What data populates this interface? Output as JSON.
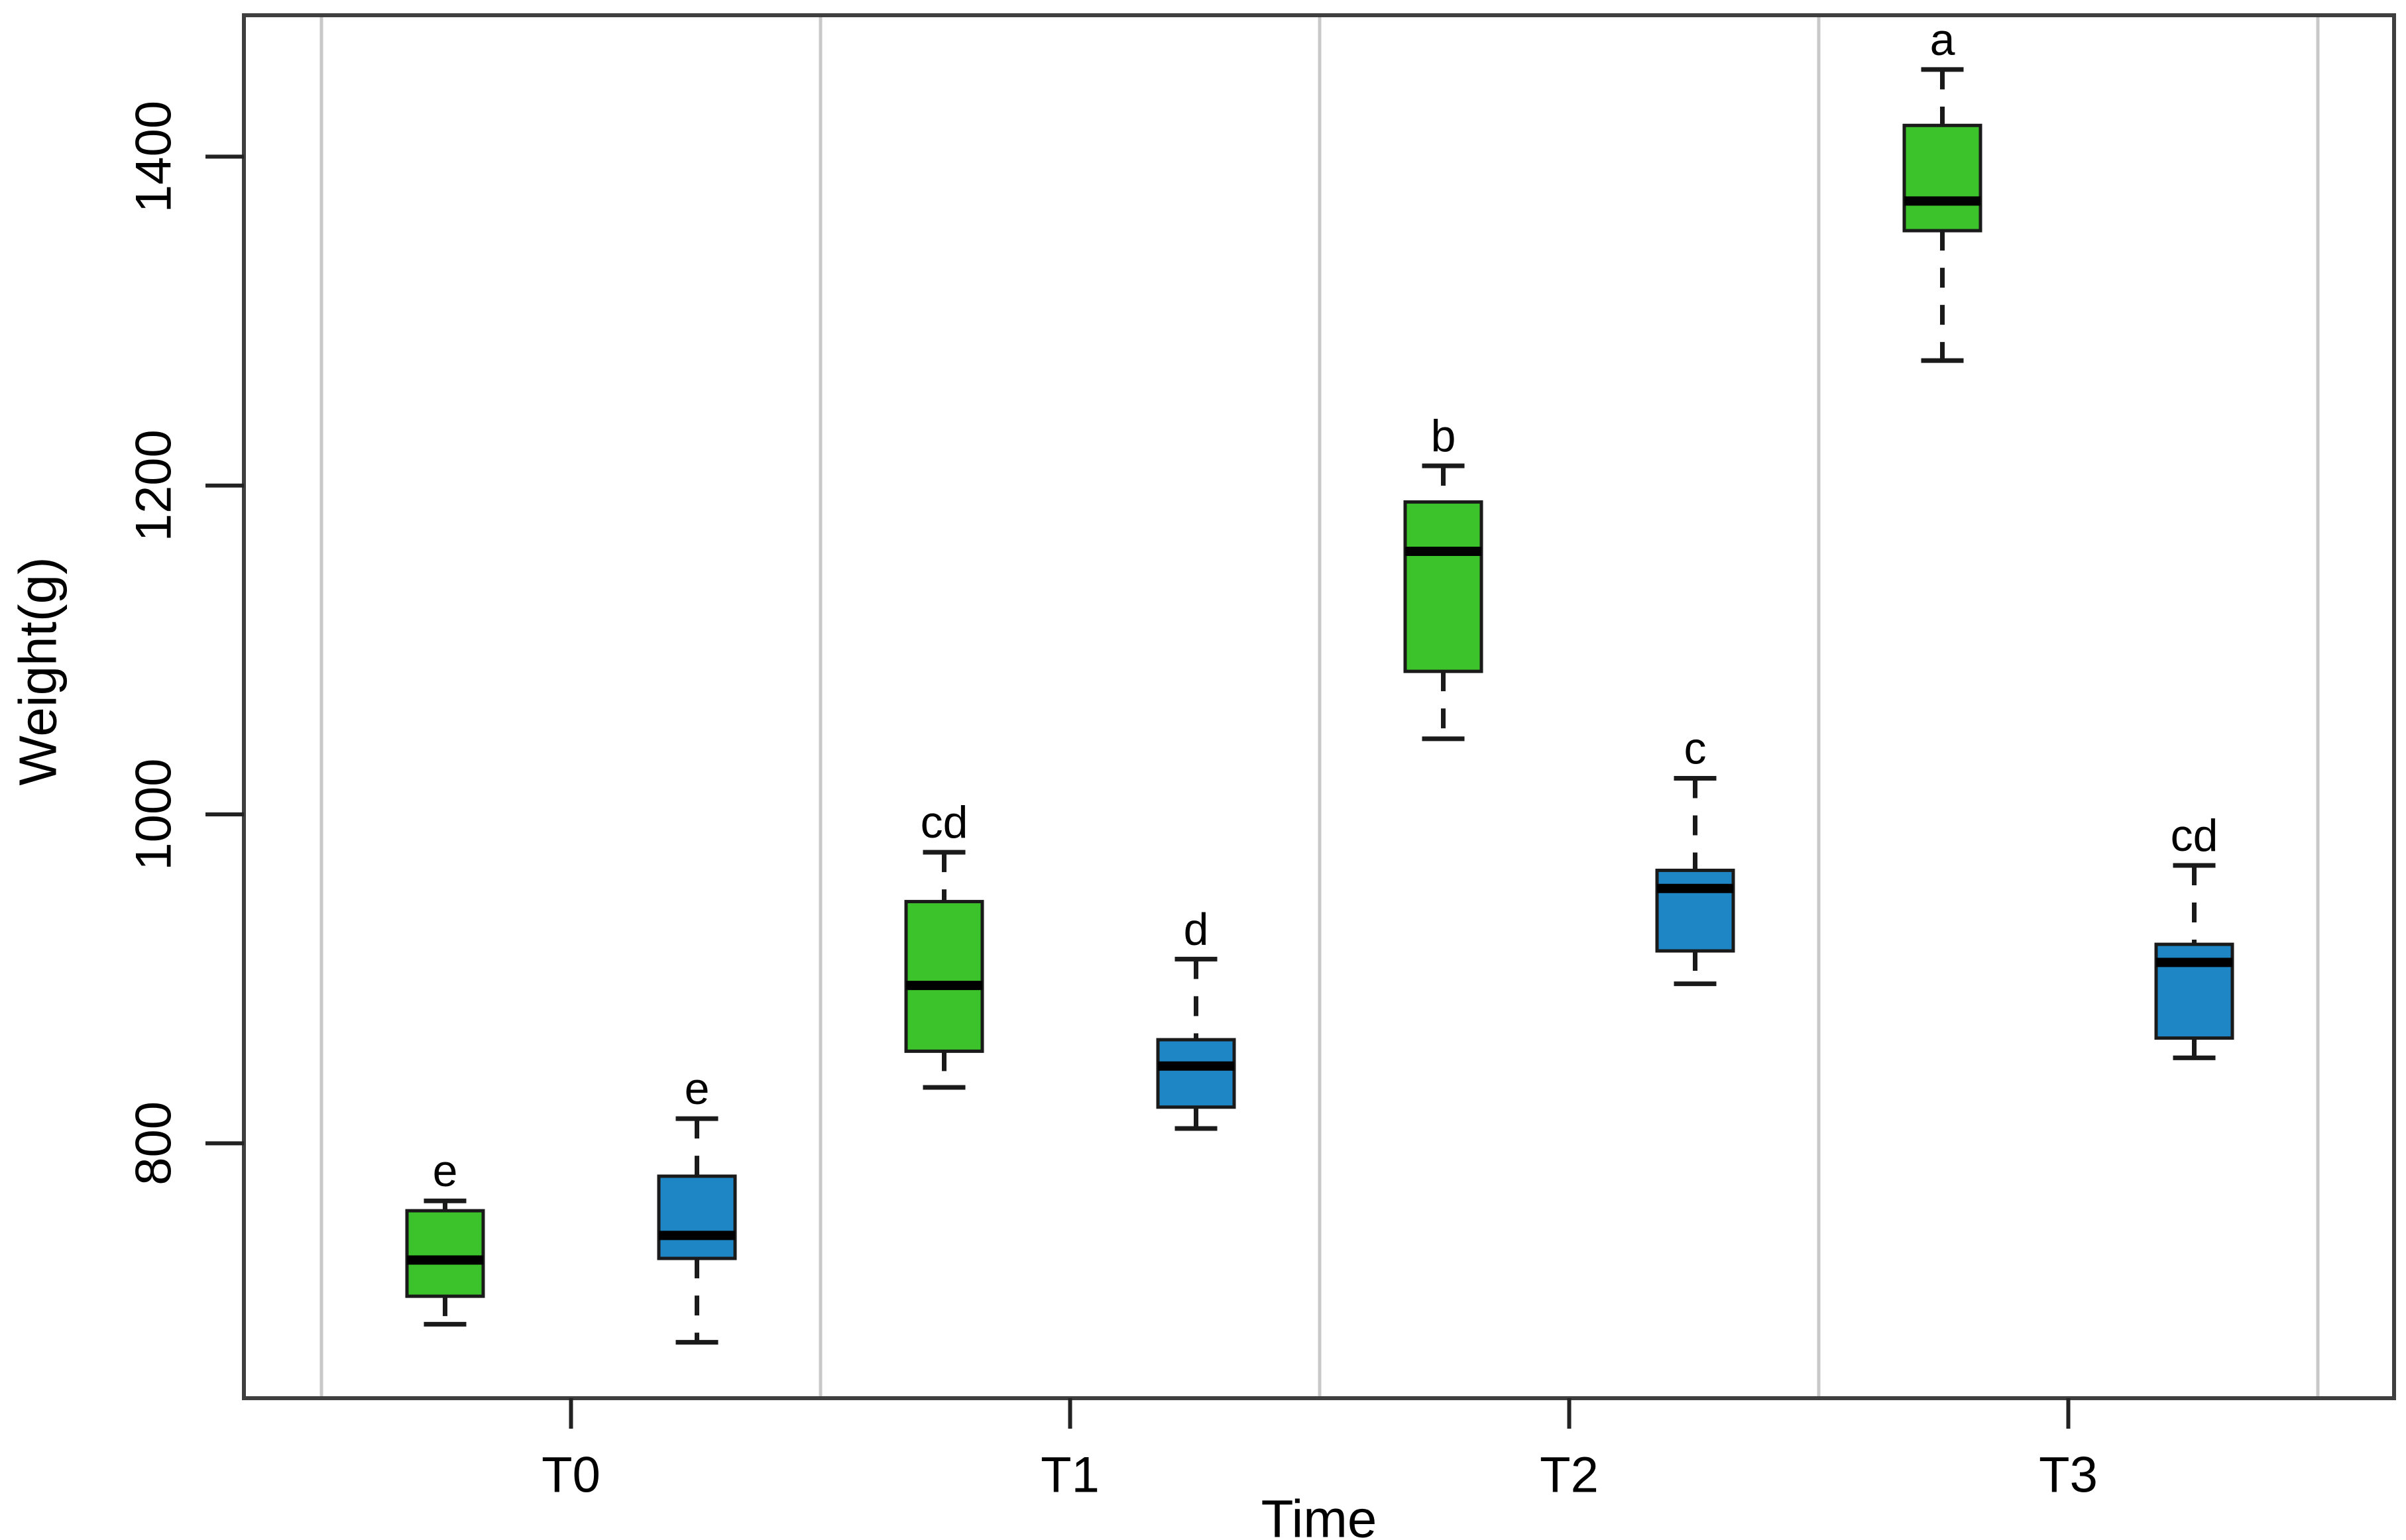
{
  "figure": {
    "background": "#ffffff"
  },
  "chart_data": {
    "type": "boxplot",
    "title": "",
    "xlabel": "Time",
    "ylabel": "Weight(g)",
    "categories": [
      "T0",
      "T1",
      "T2",
      "T3"
    ],
    "yticks": [
      800,
      1000,
      1200,
      1400
    ],
    "ylim": [
      645,
      1486
    ],
    "grid": "vertical-panel-separators-only",
    "legend": "none",
    "colors": {
      "series_green": "#3CC32B",
      "series_blue": "#1E86C4",
      "box_stroke": "#1a1a1a",
      "median": "#000000",
      "plot_border": "#3f3f3f",
      "panel_separator": "#c8c8c8",
      "tick": "#222222",
      "text": "#000000"
    },
    "series": [
      {
        "name": "green",
        "color_key": "series_green",
        "boxes": [
          {
            "category": "T0",
            "low": 690,
            "q1": 707,
            "median": 729,
            "q3": 759,
            "high": 765,
            "label": "e"
          },
          {
            "category": "T1",
            "low": 834,
            "q1": 856,
            "median": 896,
            "q3": 947,
            "high": 977,
            "label": "cd"
          },
          {
            "category": "T2",
            "low": 1046,
            "q1": 1087,
            "median": 1160,
            "q3": 1190,
            "high": 1212,
            "label": "b"
          },
          {
            "category": "T3",
            "low": 1276,
            "q1": 1355,
            "median": 1373,
            "q3": 1419,
            "high": 1453,
            "label": "a"
          }
        ]
      },
      {
        "name": "blue",
        "color_key": "series_blue",
        "boxes": [
          {
            "category": "T0",
            "low": 679,
            "q1": 730,
            "median": 744,
            "q3": 780,
            "high": 815,
            "label": "e"
          },
          {
            "category": "T1",
            "low": 809,
            "q1": 822,
            "median": 847,
            "q3": 863,
            "high": 912,
            "label": "d"
          },
          {
            "category": "T2",
            "low": 897,
            "q1": 917,
            "median": 955,
            "q3": 966,
            "high": 1022,
            "label": "c"
          },
          {
            "category": "T3",
            "low": 852,
            "q1": 864,
            "median": 910,
            "q3": 921,
            "high": 969,
            "label": "cd"
          }
        ]
      }
    ]
  }
}
